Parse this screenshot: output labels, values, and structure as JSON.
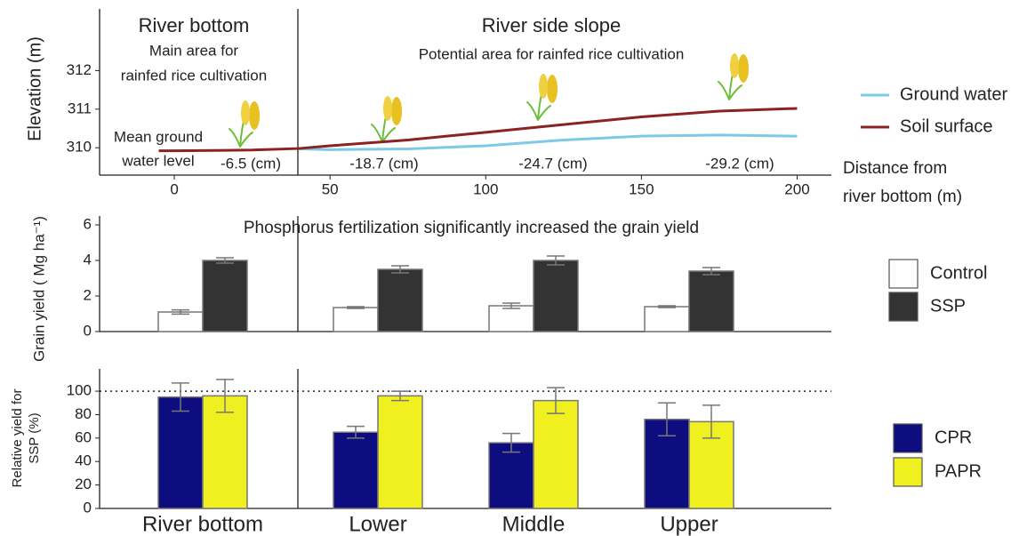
{
  "chart_data": [
    {
      "type": "line",
      "y_label": "Elevation (m)",
      "x_label": [
        "Distance from",
        "river bottom (m)"
      ],
      "x": [
        -5,
        0,
        25,
        40,
        50,
        75,
        100,
        125,
        150,
        175,
        200
      ],
      "series": [
        {
          "name": "Ground water",
          "color": "#7ec8e8",
          "values": [
            null,
            null,
            null,
            309.97,
            309.95,
            309.97,
            310.05,
            310.2,
            310.3,
            310.33,
            310.3
          ]
        },
        {
          "name": "Soil surface",
          "color": "#8b2323",
          "values": [
            309.92,
            309.92,
            309.94,
            309.98,
            310.05,
            310.2,
            310.4,
            310.6,
            310.8,
            310.95,
            311.02
          ]
        }
      ],
      "xlim": [
        -24,
        211
      ],
      "ylim": [
        309.29,
        313.6
      ],
      "xticks": [
        0,
        50,
        100,
        150,
        200
      ],
      "yticks": [
        310,
        311,
        312
      ],
      "annotations": [
        "River bottom",
        "Main area for",
        "rainfed rice cultivation",
        "River side slope",
        "Potential area for rainfed rice cultivation",
        "Mean ground",
        "water level",
        "-6.5 (cm)",
        "-18.7 (cm)",
        "-24.7 (cm)",
        "-29.2 (cm)"
      ],
      "legend": "right"
    },
    {
      "type": "bar",
      "title": "Phosphorus fertilization significantly increased the grain yield",
      "y_label": "Grain yield ( Mg ha⁻¹)",
      "series": [
        {
          "name": "Control",
          "color": "#ffffff",
          "values": [
            1.1,
            1.35,
            1.45,
            1.4
          ],
          "errors": [
            0.12,
            0.05,
            0.15,
            0.05
          ]
        },
        {
          "name": "SSP",
          "color": "#333333",
          "values": [
            4.0,
            3.5,
            4.0,
            3.4
          ],
          "errors": [
            0.15,
            0.2,
            0.25,
            0.2
          ]
        }
      ],
      "ylim": [
        0,
        6.5
      ],
      "yticks": [
        0,
        2,
        4,
        6
      ],
      "legend": "right"
    },
    {
      "type": "bar",
      "y_label": [
        "Relative yield for",
        "SSP (%)"
      ],
      "categories": [
        "River bottom",
        "Lower",
        "Middle",
        "Upper"
      ],
      "series": [
        {
          "name": "CPR",
          "color": "#0d0d80",
          "values": [
            95,
            65,
            56,
            76
          ],
          "errors": [
            12,
            5,
            8,
            14
          ]
        },
        {
          "name": "PAPR",
          "color": "#f0f020",
          "values": [
            96,
            96,
            92,
            74
          ],
          "errors": [
            14,
            4,
            11,
            14
          ]
        }
      ],
      "ylim": [
        0,
        119
      ],
      "yticks": [
        0,
        20,
        40,
        60,
        80,
        100
      ],
      "reference_line": 100,
      "legend": "right"
    }
  ]
}
